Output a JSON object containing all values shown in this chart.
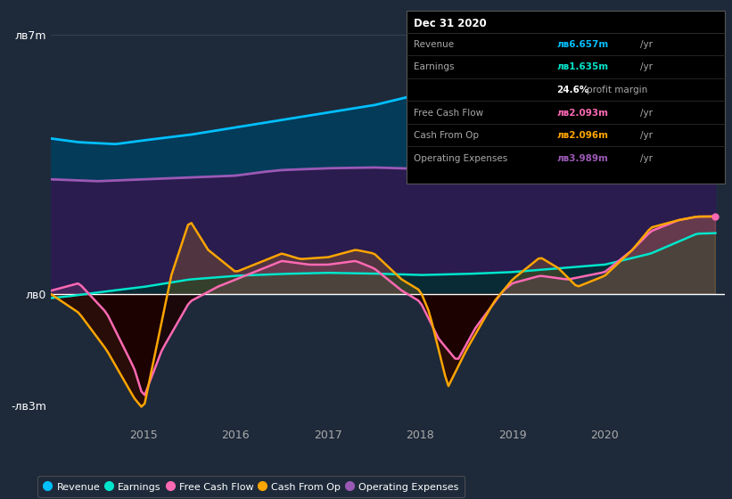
{
  "background_color": "#1e2a3a",
  "plot_bg_color": "#1e2a3a",
  "colors": {
    "revenue": "#00bfff",
    "earnings": "#00e5cc",
    "free_cash_flow": "#ff69b4",
    "cash_from_op": "#ffa500",
    "operating_expenses": "#9b59b6"
  },
  "legend": [
    {
      "label": "Revenue",
      "color": "#00bfff"
    },
    {
      "label": "Earnings",
      "color": "#00e5cc"
    },
    {
      "label": "Free Cash Flow",
      "color": "#ff69b4"
    },
    {
      "label": "Cash From Op",
      "color": "#ffa500"
    },
    {
      "label": "Operating Expenses",
      "color": "#9b59b6"
    }
  ],
  "info_box": {
    "title": "Dec 31 2020",
    "rows": [
      {
        "label": "Revenue",
        "value": "лв6.657m",
        "value_color": "#00bfff"
      },
      {
        "label": "Earnings",
        "value": "лв1.635m",
        "value_color": "#00e5cc"
      },
      {
        "label": "",
        "value": "24.6% profit margin",
        "value_color": "#ffffff"
      },
      {
        "label": "Free Cash Flow",
        "value": "лв2.093m",
        "value_color": "#ff69b4"
      },
      {
        "label": "Cash From Op",
        "value": "лв2.096m",
        "value_color": "#ffa500"
      },
      {
        "label": "Operating Expenses",
        "value": "лв3.989m",
        "value_color": "#9b59b6"
      }
    ]
  }
}
